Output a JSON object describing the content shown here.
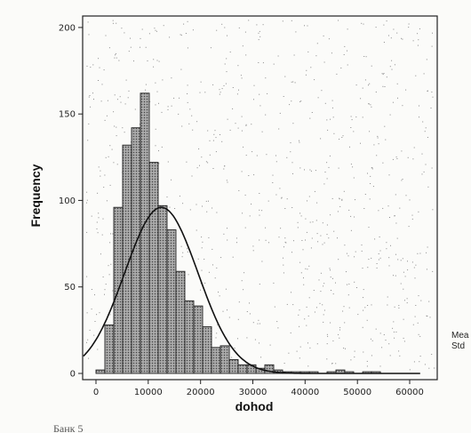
{
  "chart_data": {
    "type": "bar",
    "subtype": "histogram",
    "xlabel": "dohod",
    "ylabel": "Frequency",
    "xlim": [
      -5000,
      64000
    ],
    "ylim": [
      0,
      210
    ],
    "xticks": [
      0,
      10000,
      20000,
      30000,
      40000,
      50000,
      60000
    ],
    "xtick_labels": [
      "0",
      "10000",
      "20000",
      "30000",
      "40000",
      "50000",
      "60000"
    ],
    "yticks": [
      0,
      50,
      100,
      150,
      200
    ],
    "ytick_labels": [
      "0",
      "50",
      "100",
      "150",
      "200"
    ],
    "bin_width": 1700,
    "bins": [
      {
        "start": 0,
        "end": 1700,
        "value": 2
      },
      {
        "start": 1700,
        "end": 3400,
        "value": 28
      },
      {
        "start": 3400,
        "end": 5100,
        "value": 96
      },
      {
        "start": 5100,
        "end": 6800,
        "value": 132
      },
      {
        "start": 6800,
        "end": 8500,
        "value": 142
      },
      {
        "start": 8500,
        "end": 10200,
        "value": 162
      },
      {
        "start": 10200,
        "end": 11900,
        "value": 122
      },
      {
        "start": 11900,
        "end": 13600,
        "value": 97
      },
      {
        "start": 13600,
        "end": 15300,
        "value": 83
      },
      {
        "start": 15300,
        "end": 17000,
        "value": 59
      },
      {
        "start": 17000,
        "end": 18700,
        "value": 42
      },
      {
        "start": 18700,
        "end": 20400,
        "value": 39
      },
      {
        "start": 20400,
        "end": 22100,
        "value": 27
      },
      {
        "start": 22100,
        "end": 23800,
        "value": 15
      },
      {
        "start": 23800,
        "end": 25500,
        "value": 16
      },
      {
        "start": 25500,
        "end": 27200,
        "value": 8
      },
      {
        "start": 27200,
        "end": 28900,
        "value": 5
      },
      {
        "start": 28900,
        "end": 30600,
        "value": 5
      },
      {
        "start": 30600,
        "end": 32300,
        "value": 3
      },
      {
        "start": 32300,
        "end": 34000,
        "value": 5
      },
      {
        "start": 34000,
        "end": 35700,
        "value": 2
      },
      {
        "start": 35700,
        "end": 37400,
        "value": 1
      },
      {
        "start": 37400,
        "end": 39100,
        "value": 1
      },
      {
        "start": 39100,
        "end": 40800,
        "value": 1
      },
      {
        "start": 40800,
        "end": 42500,
        "value": 1
      },
      {
        "start": 44200,
        "end": 45900,
        "value": 1
      },
      {
        "start": 45900,
        "end": 47600,
        "value": 2
      },
      {
        "start": 47600,
        "end": 49300,
        "value": 1
      },
      {
        "start": 51000,
        "end": 52700,
        "value": 1
      },
      {
        "start": 52700,
        "end": 54400,
        "value": 1
      }
    ],
    "normal_curve": {
      "mean": 12500,
      "std_dev": 7000,
      "peak": 96
    },
    "grid": false,
    "legend": "none"
  },
  "side_labels": [
    "Mea",
    "Std"
  ],
  "caption": "Банк 5"
}
